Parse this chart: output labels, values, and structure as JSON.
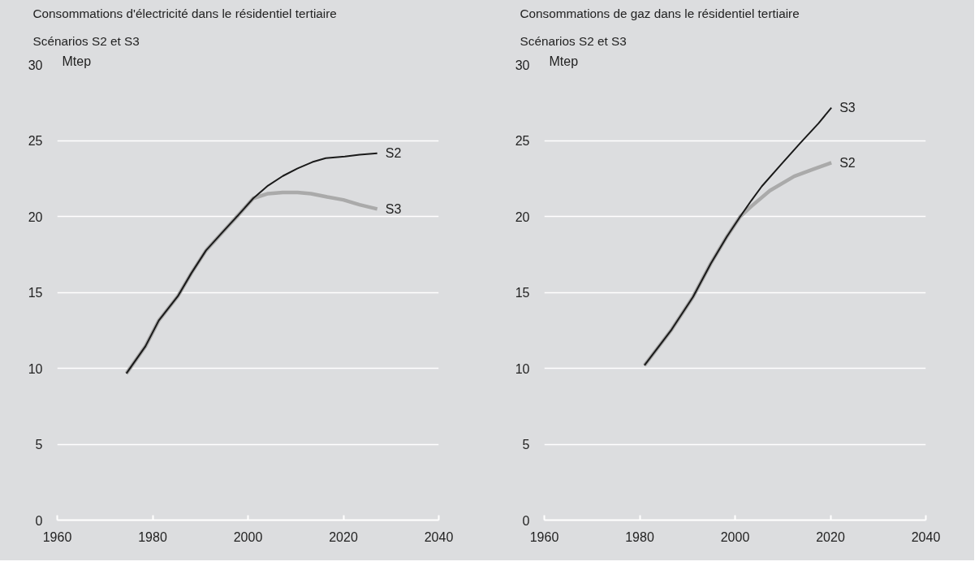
{
  "chart_data": [
    {
      "type": "line",
      "title": "Consommations d'électricité dans le résidentiel tertiaire",
      "subtitle": "Scénarios S2 et S3",
      "ylabel": "Mtep",
      "xlim": [
        1960,
        2040
      ],
      "xticks": [
        1960,
        1980,
        2000,
        2020,
        2040
      ],
      "ylim": [
        0,
        30
      ],
      "yticks": [
        0,
        5,
        10,
        15,
        20,
        25,
        30
      ],
      "grid": "y",
      "series": [
        {
          "name": "S3",
          "color": "#aaaaaa",
          "x": [
            1974.5,
            1978.5,
            1981.3,
            1985.3,
            1988.1,
            1991.2,
            1994.9,
            1998.0,
            2001.1,
            2004.2,
            2007.3,
            2010.4,
            2013.2,
            2016.6,
            2020.0,
            2023.4,
            2027.1
          ],
          "values": [
            9.66,
            11.45,
            13.15,
            14.75,
            16.25,
            17.76,
            19.04,
            20.1,
            21.19,
            21.5,
            21.58,
            21.58,
            21.5,
            21.28,
            21.09,
            20.77,
            20.49
          ]
        },
        {
          "name": "S2",
          "color": "#1a1a1a",
          "x": [
            1974.5,
            1978.5,
            1981.3,
            1985.3,
            1988.1,
            1991.2,
            1994.9,
            1998.0,
            2001.1,
            2004.2,
            2007.3,
            2010.4,
            2013.5,
            2016.3,
            2020.3,
            2023.4,
            2027.1
          ],
          "values": [
            9.66,
            11.45,
            13.15,
            14.75,
            16.25,
            17.76,
            19.04,
            20.1,
            21.19,
            22.03,
            22.66,
            23.16,
            23.58,
            23.84,
            23.95,
            24.07,
            24.16
          ]
        }
      ]
    },
    {
      "type": "line",
      "title": "Consommations de gaz dans le résidentiel tertiaire",
      "subtitle": "Scénarios S2 et S3",
      "ylabel": "Mtep",
      "xlim": [
        1960,
        2040
      ],
      "xticks": [
        1960,
        1980,
        2000,
        2020,
        2040
      ],
      "ylim": [
        0,
        30
      ],
      "yticks": [
        0,
        5,
        10,
        15,
        20,
        25,
        30
      ],
      "grid": "y",
      "series": [
        {
          "name": "S2",
          "color": "#aaaaaa",
          "x": [
            1981.0,
            1986.7,
            1991.2,
            1994.9,
            1998.3,
            2001.1,
            2003.4,
            2007.3,
            2012.4,
            2016.4,
            2020.2
          ],
          "values": [
            10.19,
            12.55,
            14.71,
            16.89,
            18.68,
            20.0,
            20.66,
            21.7,
            22.64,
            23.11,
            23.53
          ]
        },
        {
          "name": "S3",
          "color": "#1a1a1a",
          "x": [
            1981.0,
            1986.7,
            1991.2,
            1994.9,
            1998.3,
            2001.1,
            2003.4,
            2005.6,
            2009.6,
            2013.6,
            2017.5,
            2020.2
          ],
          "values": [
            10.19,
            12.55,
            14.71,
            16.89,
            18.68,
            20.0,
            21.04,
            21.98,
            23.4,
            24.81,
            26.13,
            27.16
          ]
        }
      ]
    }
  ]
}
